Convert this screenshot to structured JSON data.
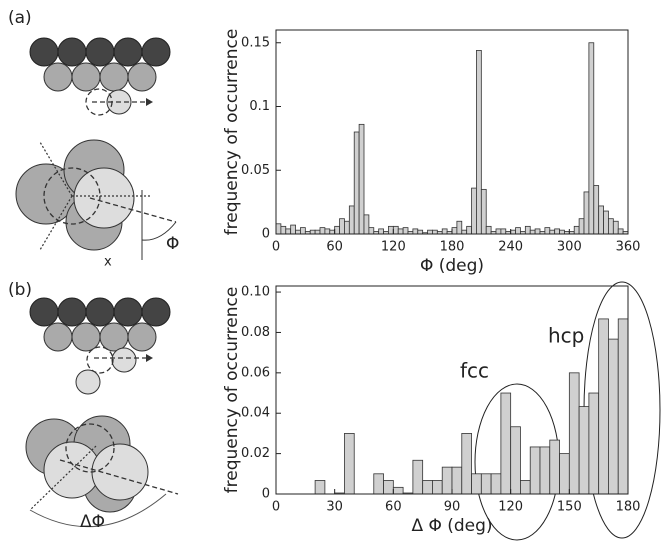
{
  "chart_data": [
    {
      "type": "histogram",
      "panel_label": "(a)",
      "xlabel": "Φ (deg)",
      "ylabel": "frequency of occurrence",
      "diagram_labels": [
        "x",
        "Φ"
      ],
      "bins": [
        0,
        5,
        10,
        15,
        20,
        25,
        30,
        35,
        40,
        45,
        50,
        55,
        60,
        65,
        70,
        75,
        80,
        85,
        90,
        95,
        100,
        105,
        110,
        115,
        120,
        125,
        130,
        135,
        140,
        145,
        150,
        155,
        160,
        165,
        170,
        175,
        180,
        185,
        190,
        195,
        200,
        205,
        210,
        215,
        220,
        225,
        230,
        235,
        240,
        245,
        250,
        255,
        260,
        265,
        270,
        275,
        280,
        285,
        290,
        295,
        300,
        305,
        310,
        315,
        320,
        325,
        330,
        335,
        340,
        345,
        350,
        355,
        360
      ],
      "values": [
        0.008,
        0.006,
        0.004,
        0.007,
        0.003,
        0.005,
        0.002,
        0.003,
        0.003,
        0.005,
        0.004,
        0.003,
        0.006,
        0.012,
        0.01,
        0.022,
        0.08,
        0.086,
        0.015,
        0.005,
        0.002,
        0.004,
        0.002,
        0.006,
        0.006,
        0.004,
        0.005,
        0.002,
        0.004,
        0.003,
        0.001,
        0.003,
        0.003,
        0.002,
        0.004,
        0.002,
        0.005,
        0.01,
        0.003,
        0.006,
        0.036,
        0.144,
        0.035,
        0.006,
        0.002,
        0.004,
        0.004,
        0.002,
        0.003,
        0.005,
        0.002,
        0.006,
        0.003,
        0.004,
        0.002,
        0.005,
        0.003,
        0.004,
        0.003,
        0.002,
        0.002,
        0.006,
        0.012,
        0.033,
        0.15,
        0.038,
        0.022,
        0.018,
        0.012,
        0.01,
        0.004,
        0.002
      ],
      "color": "#d0d0d0",
      "xlim": [
        0,
        360
      ],
      "xticks": [
        0,
        60,
        120,
        180,
        240,
        300,
        360
      ],
      "ylim": [
        0,
        0.16
      ],
      "yticks": [
        0,
        0.05,
        0.1,
        0.15
      ]
    },
    {
      "type": "histogram",
      "panel_label": "(b)",
      "xlabel": "Δ Φ (deg)",
      "ylabel": "frequency of occurrence",
      "diagram_labels": [
        "ΔΦ"
      ],
      "annotations": [
        "fcc",
        "hcp"
      ],
      "bins": [
        0,
        5,
        10,
        15,
        20,
        25,
        30,
        35,
        40,
        45,
        50,
        55,
        60,
        65,
        70,
        75,
        80,
        85,
        90,
        95,
        100,
        105,
        110,
        115,
        120,
        125,
        130,
        135,
        140,
        145,
        150,
        155,
        160,
        165,
        170,
        175,
        180
      ],
      "values": [
        0,
        0,
        0,
        0,
        0.0067,
        0,
        0.0005,
        0.03,
        0,
        0,
        0.01,
        0.0067,
        0.0033,
        0.0005,
        0.0167,
        0.0067,
        0.0067,
        0.0133,
        0.0133,
        0.03,
        0.01,
        0.01,
        0.01,
        0.05,
        0.0333,
        0.0067,
        0.0233,
        0.0233,
        0.0267,
        0.02,
        0.06,
        0.0433,
        0.05,
        0.0867,
        0.0767,
        0.0867
      ],
      "color": "#d0d0d0",
      "xlim": [
        0,
        180
      ],
      "xticks": [
        0,
        30,
        60,
        90,
        120,
        150,
        180
      ],
      "ylim": [
        0,
        0.103
      ],
      "yticks": [
        0,
        0.02,
        0.04,
        0.06,
        0.08,
        {
          "value": 0.1,
          "label": "0.10"
        }
      ]
    }
  ]
}
